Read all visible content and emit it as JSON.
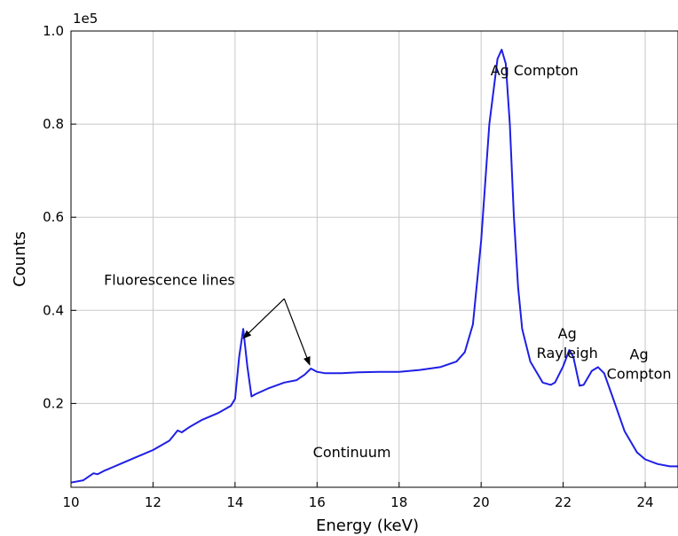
{
  "chart_data": {
    "type": "line",
    "xlabel": "Energy (keV)",
    "ylabel": "Counts",
    "y_scale_label": "1e5",
    "xlim": [
      10,
      24.8
    ],
    "ylim": [
      0.02,
      1.0
    ],
    "x_ticks": [
      "10",
      "12",
      "14",
      "16",
      "18",
      "20",
      "22",
      "24"
    ],
    "y_ticks": [
      "0.2",
      "0.4",
      "0.6",
      "0.8",
      "1.0"
    ],
    "grid": true,
    "color": "#1f1fe6",
    "series": [
      {
        "x": [
          10.0,
          10.3,
          10.55,
          10.65,
          10.8,
          11.2,
          11.6,
          12.0,
          12.4,
          12.6,
          12.7,
          12.9,
          13.2,
          13.6,
          13.9,
          14.0,
          14.1,
          14.2,
          14.3,
          14.4,
          14.5,
          14.8,
          15.2,
          15.5,
          15.7,
          15.85,
          16.0,
          16.2,
          16.6,
          17.0,
          17.5,
          18.0,
          18.5,
          19.0,
          19.4,
          19.6,
          19.8,
          20.0,
          20.2,
          20.4,
          20.5,
          20.6,
          20.7,
          20.8,
          20.9,
          21.0,
          21.2,
          21.5,
          21.7,
          21.8,
          22.0,
          22.15,
          22.25,
          22.4,
          22.5,
          22.7,
          22.85,
          23.0,
          23.2,
          23.5,
          23.8,
          24.0,
          24.3,
          24.6,
          24.8
        ],
        "values": [
          0.03,
          0.035,
          0.05,
          0.048,
          0.055,
          0.07,
          0.085,
          0.1,
          0.12,
          0.142,
          0.138,
          0.15,
          0.165,
          0.18,
          0.195,
          0.21,
          0.3,
          0.36,
          0.28,
          0.215,
          0.22,
          0.232,
          0.245,
          0.25,
          0.262,
          0.275,
          0.268,
          0.265,
          0.265,
          0.267,
          0.268,
          0.268,
          0.272,
          0.278,
          0.29,
          0.31,
          0.37,
          0.55,
          0.8,
          0.94,
          0.96,
          0.93,
          0.8,
          0.6,
          0.45,
          0.36,
          0.29,
          0.245,
          0.24,
          0.245,
          0.28,
          0.315,
          0.3,
          0.238,
          0.24,
          0.27,
          0.278,
          0.265,
          0.215,
          0.14,
          0.095,
          0.08,
          0.07,
          0.065,
          0.065
        ]
      }
    ],
    "annotations": [
      {
        "id": "ag-compton-1",
        "lines": [
          "Ag Compton"
        ],
        "x": 21.3,
        "y": 0.905
      },
      {
        "id": "fluorescence",
        "lines": [
          "Fluorescence lines"
        ],
        "x": 12.4,
        "y": 0.455
      },
      {
        "id": "ag-rayleigh",
        "lines": [
          "Ag",
          "Rayleigh"
        ],
        "x": 22.1,
        "y": 0.34
      },
      {
        "id": "ag-compton-2",
        "lines": [
          "Ag",
          "Compton"
        ],
        "x": 23.85,
        "y": 0.295
      },
      {
        "id": "continuum",
        "lines": [
          "Continuum"
        ],
        "x": 16.85,
        "y": 0.085
      }
    ],
    "arrows": [
      {
        "from": [
          15.2,
          0.425
        ],
        "to": [
          14.2,
          0.34
        ]
      },
      {
        "from": [
          15.2,
          0.425
        ],
        "to": [
          15.82,
          0.283
        ]
      }
    ]
  }
}
